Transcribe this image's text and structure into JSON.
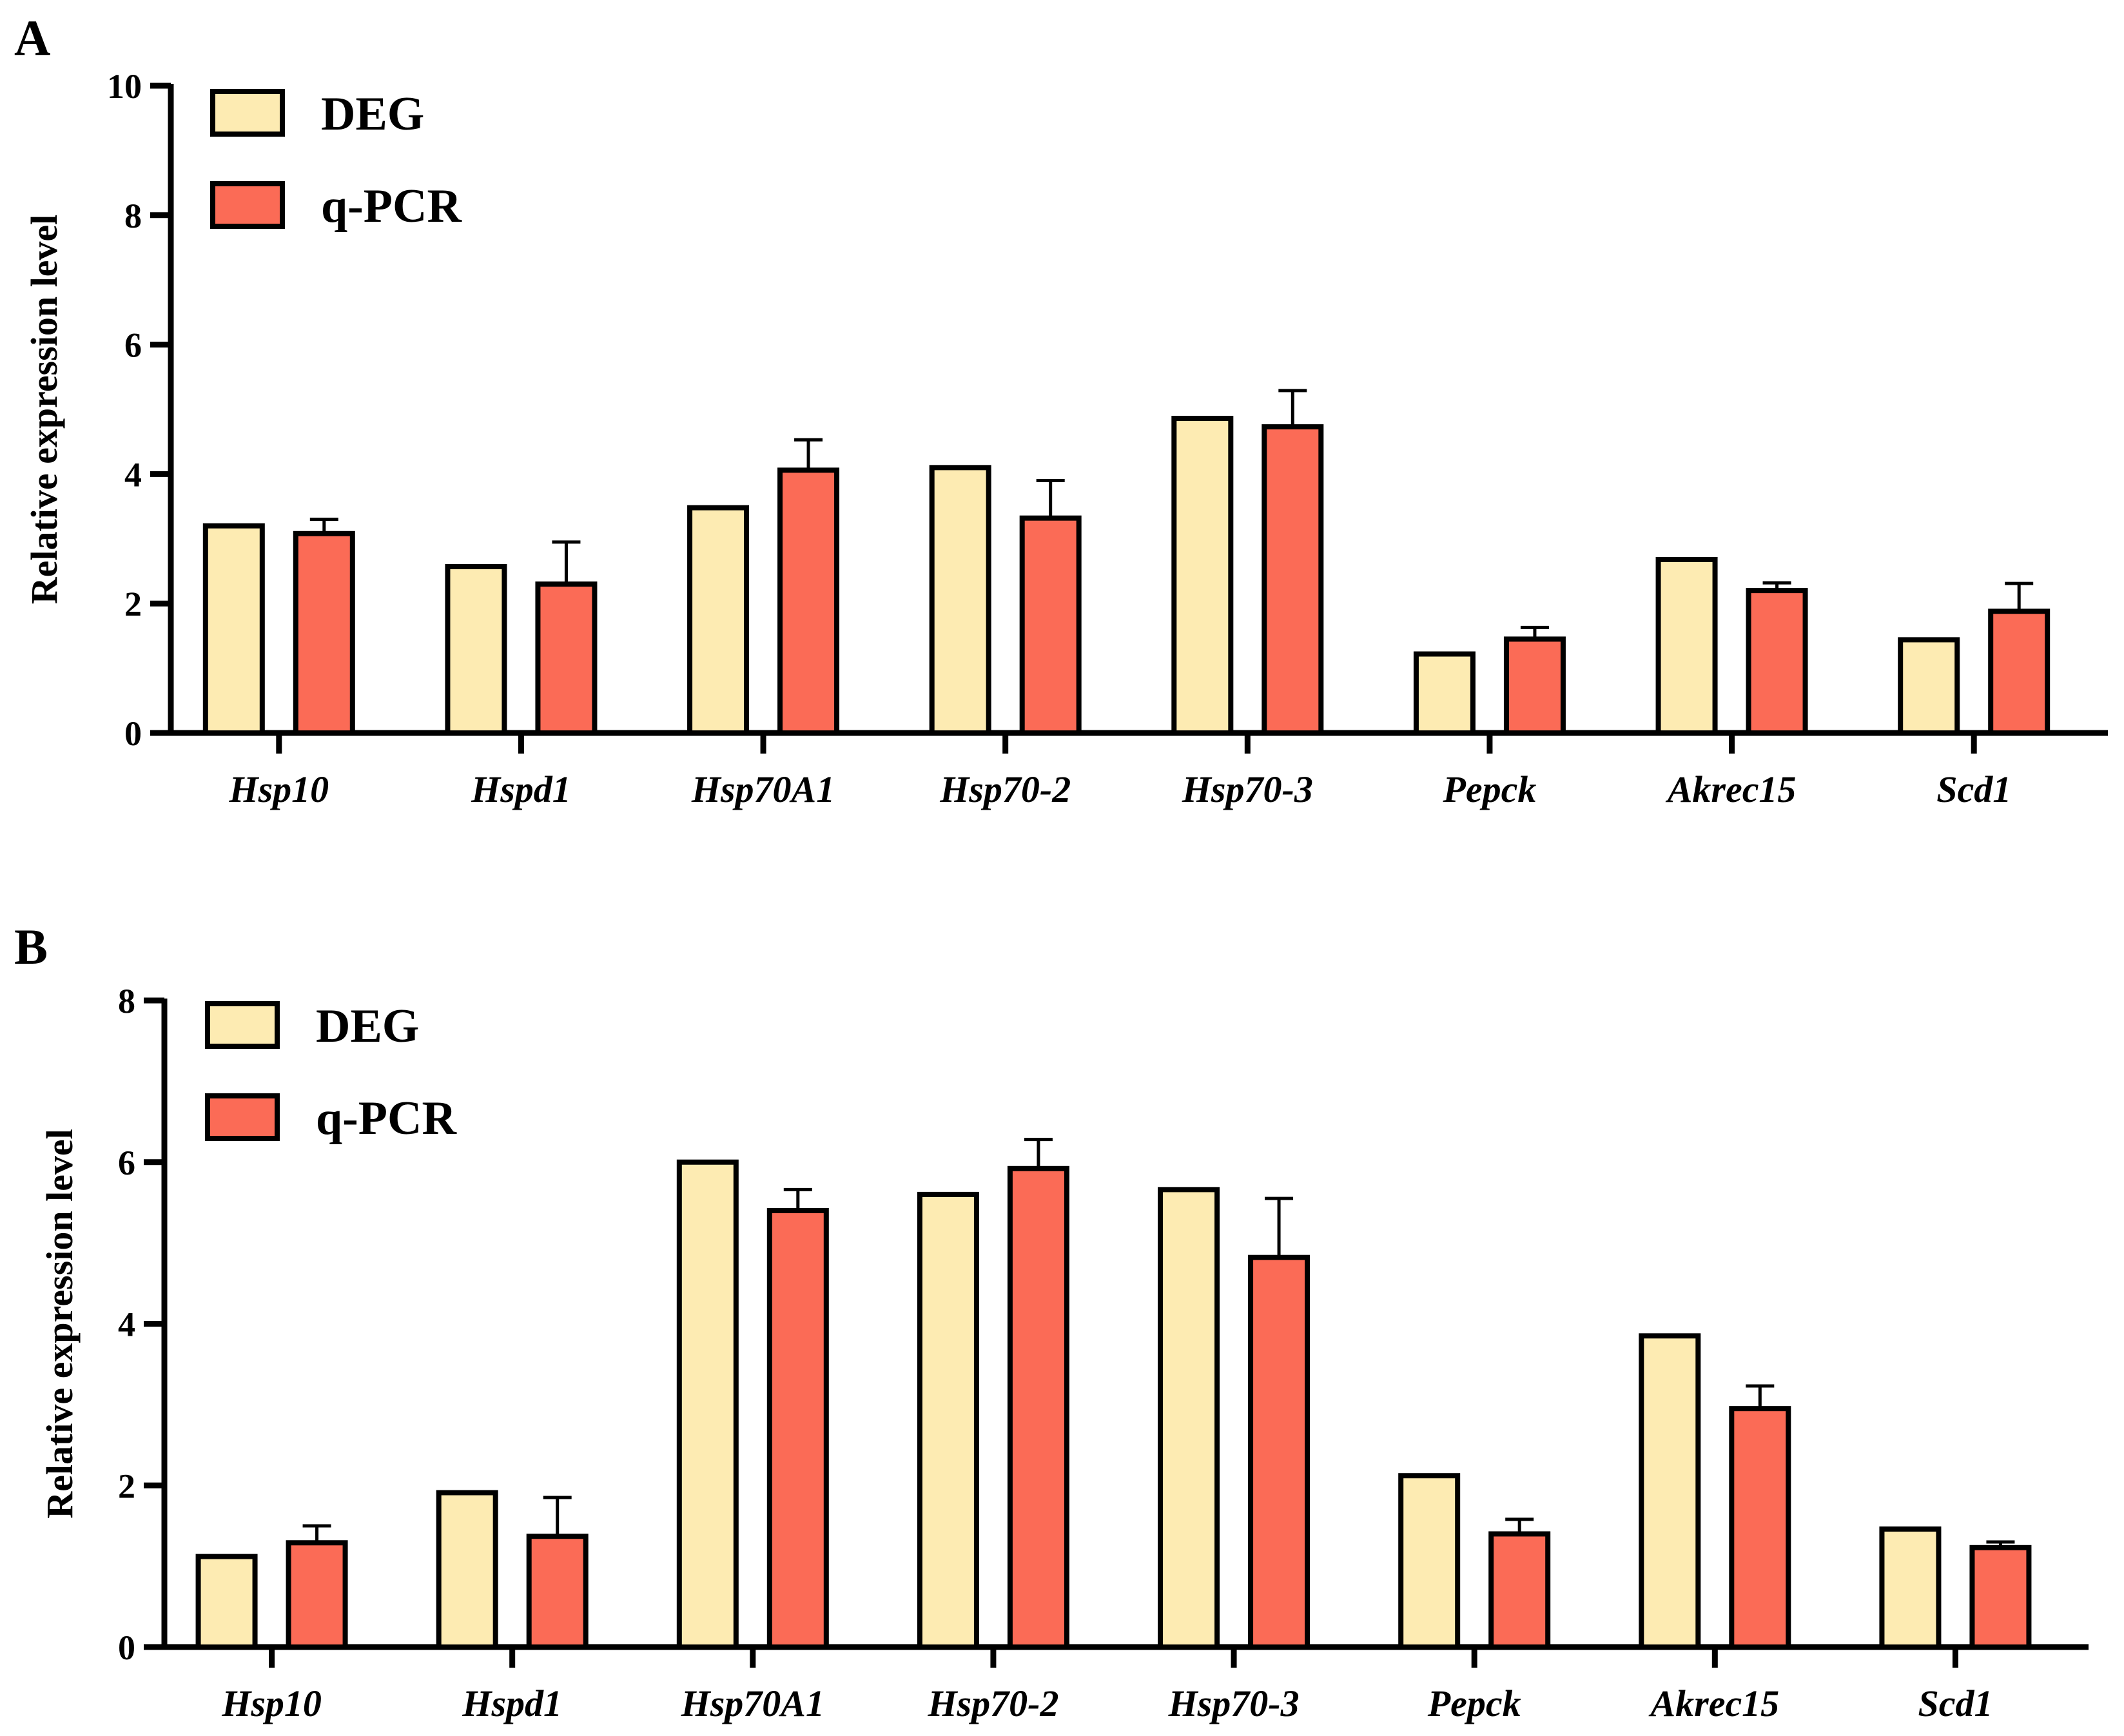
{
  "colors": {
    "DEG": "#FDEBB2",
    "q-PCR": "#FB6B56",
    "stroke": "#000000"
  },
  "chart_data": [
    {
      "panel": "A",
      "type": "bar",
      "title": "",
      "xlabel": "",
      "ylabel": "Relative expression level",
      "ylim": [
        0,
        10
      ],
      "yticks": [
        0,
        2,
        4,
        6,
        8,
        10
      ],
      "legend_position": "top-left",
      "categories": [
        "Hsp10",
        "Hspd1",
        "Hsp70A1",
        "Hsp70-2",
        "Hsp70-3",
        "Pepck",
        "Akrec15",
        "Scd1"
      ],
      "series": [
        {
          "name": "DEG",
          "values": [
            3.2,
            2.57,
            3.48,
            4.1,
            4.86,
            1.22,
            2.68,
            1.44
          ],
          "errors": [
            0,
            0,
            0,
            0,
            0,
            0,
            0,
            0
          ]
        },
        {
          "name": "q-PCR",
          "values": [
            3.08,
            2.3,
            4.06,
            3.32,
            4.73,
            1.45,
            2.2,
            1.88
          ],
          "errors": [
            0.22,
            0.65,
            0.47,
            0.58,
            0.56,
            0.18,
            0.12,
            0.43
          ]
        }
      ]
    },
    {
      "panel": "B",
      "type": "bar",
      "title": "",
      "xlabel": "",
      "ylabel": "Relative expression level",
      "ylim": [
        0,
        8
      ],
      "yticks": [
        0,
        2,
        4,
        6,
        8
      ],
      "legend_position": "top-left",
      "categories": [
        "Hsp10",
        "Hspd1",
        "Hsp70A1",
        "Hsp70-2",
        "Hsp70-3",
        "Pepck",
        "Akrec15",
        "Scd1"
      ],
      "series": [
        {
          "name": "DEG",
          "values": [
            1.12,
            1.91,
            6.0,
            5.6,
            5.66,
            2.12,
            3.85,
            1.46
          ],
          "errors": [
            0,
            0,
            0,
            0,
            0,
            0,
            0,
            0
          ]
        },
        {
          "name": "q-PCR",
          "values": [
            1.29,
            1.37,
            5.4,
            5.92,
            4.82,
            1.4,
            2.95,
            1.23
          ],
          "errors": [
            0.21,
            0.48,
            0.26,
            0.36,
            0.73,
            0.18,
            0.28,
            0.07
          ]
        }
      ]
    }
  ]
}
